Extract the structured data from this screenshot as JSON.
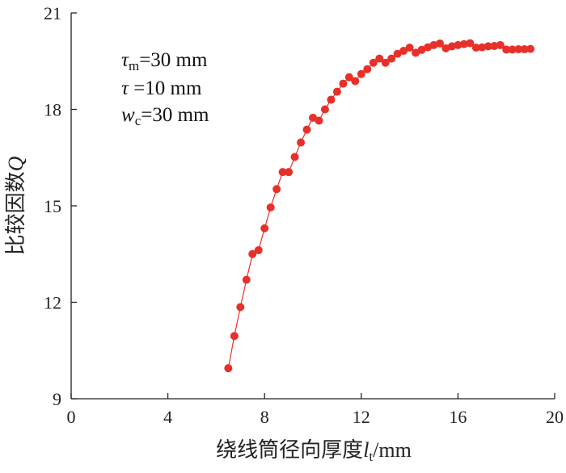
{
  "chart_data": {
    "type": "scatter",
    "title": "",
    "xlabel": {
      "main": "绕线筒径向厚度",
      "var": "l",
      "sub": "t",
      "unit": "/mm"
    },
    "ylabel": {
      "main": "比较因数",
      "var": "Q"
    },
    "xlim": [
      0,
      20
    ],
    "ylim": [
      9,
      21
    ],
    "x_ticks": [
      "0",
      "4",
      "8",
      "12",
      "16",
      "20"
    ],
    "y_ticks": [
      "9",
      "12",
      "15",
      "18",
      "21"
    ],
    "grid": false,
    "marker_color": "#e8302a",
    "line_color": "#e8302a",
    "annotations": [
      {
        "var": "τ",
        "sub": "m",
        "text": "=30 mm"
      },
      {
        "var": "τ",
        "sub": "",
        "text": " =10 mm"
      },
      {
        "var": "w",
        "sub": "c",
        "text": "=30 mm"
      }
    ],
    "series": [
      {
        "x": [
          6.5,
          6.75,
          7.0,
          7.25,
          7.5,
          7.75,
          8.0,
          8.25,
          8.5,
          8.75,
          9.0,
          9.25,
          9.5,
          9.75,
          10.0,
          10.25,
          10.5,
          10.75,
          11.0,
          11.25,
          11.5,
          11.75,
          12.0,
          12.25,
          12.5,
          12.75,
          13.0,
          13.25,
          13.5,
          13.75,
          14.0,
          14.25,
          14.5,
          14.75,
          15.0,
          15.25,
          15.5,
          15.75,
          16.0,
          16.25,
          16.5,
          16.75,
          17.0,
          17.25,
          17.5,
          17.75,
          18.0,
          18.25,
          18.5,
          18.75,
          19.0
        ],
        "y": [
          9.95,
          10.95,
          11.85,
          12.7,
          13.5,
          13.62,
          14.3,
          14.95,
          15.52,
          16.05,
          16.05,
          16.52,
          16.97,
          17.37,
          17.74,
          17.65,
          18.0,
          18.3,
          18.55,
          18.8,
          19.0,
          18.88,
          19.1,
          19.25,
          19.45,
          19.58,
          19.45,
          19.58,
          19.73,
          19.82,
          19.92,
          19.76,
          19.85,
          19.93,
          20.0,
          20.05,
          19.9,
          19.96,
          20.0,
          20.03,
          20.06,
          19.92,
          19.93,
          19.96,
          19.97,
          20.0,
          19.86,
          19.86,
          19.87,
          19.87,
          19.88
        ]
      }
    ]
  }
}
